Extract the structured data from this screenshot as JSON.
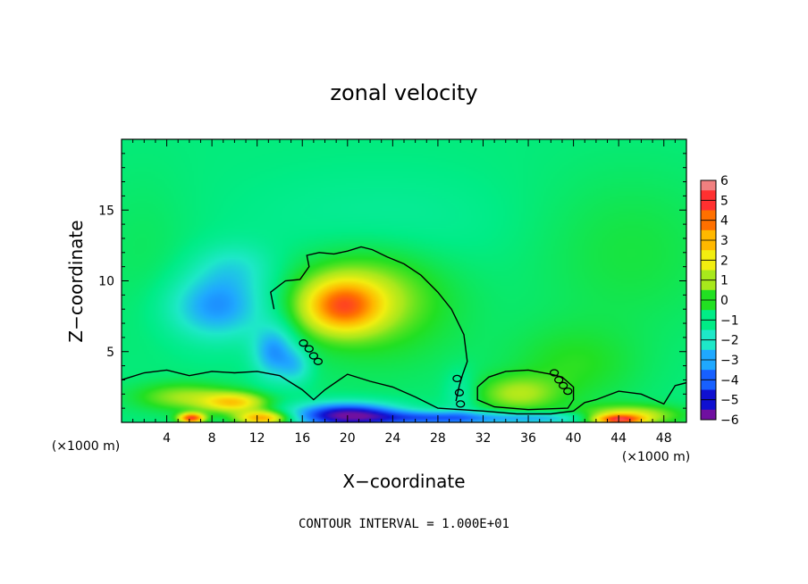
{
  "chart_data": {
    "type": "heatmap",
    "title": "zonal velocity",
    "xlabel": "X−coordinate",
    "ylabel": "Z−coordinate",
    "xlim": [
      0,
      50
    ],
    "ylim": [
      0,
      20
    ],
    "x_ticks": [
      "4",
      "8",
      "12",
      "16",
      "20",
      "24",
      "28",
      "32",
      "36",
      "40",
      "44",
      "48"
    ],
    "x_tick_values": [
      4,
      8,
      12,
      16,
      20,
      24,
      28,
      32,
      36,
      40,
      44,
      48
    ],
    "y_ticks": [
      "5",
      "10",
      "15"
    ],
    "y_tick_values": [
      5,
      10,
      15
    ],
    "x_unit_left": "(×1000 m)",
    "x_unit_right": "(×1000 m)",
    "colorbar": {
      "labels": [
        "6",
        "5",
        "4",
        "3",
        "2",
        "1",
        "0",
        "−1",
        "−2",
        "−3",
        "−4",
        "−5",
        "−6"
      ],
      "levels": [
        6,
        5,
        4,
        3,
        2,
        1,
        0,
        -1,
        -2,
        -3,
        -4,
        -5,
        -6
      ],
      "colors": [
        "#f08080",
        "#ff3030",
        "#ff7000",
        "#ffb800",
        "#f2ee10",
        "#a8e81c",
        "#22e022",
        "#00ec86",
        "#1ee8c8",
        "#1fa8ff",
        "#1760ff",
        "#1010d0",
        "#7010a0"
      ]
    },
    "background_level": -0.9,
    "anomalies": [
      {
        "x": 8.5,
        "z": 8.2,
        "sx": 3.0,
        "sz": 1.6,
        "v": -2.4
      },
      {
        "x": 10.0,
        "z": 11.0,
        "sx": 2.5,
        "sz": 1.2,
        "v": -1.0
      },
      {
        "x": 13.5,
        "z": 5.0,
        "sx": 1.3,
        "sz": 1.3,
        "v": -2.4
      },
      {
        "x": 15.5,
        "z": 4.0,
        "sx": 1.0,
        "sz": 0.9,
        "v": -1.4
      },
      {
        "x": 19.5,
        "z": 8.2,
        "sx": 2.4,
        "sz": 1.3,
        "v": 3.8
      },
      {
        "x": 21.5,
        "z": 9.2,
        "sx": 4.5,
        "sz": 2.2,
        "v": 1.6
      },
      {
        "x": 23.0,
        "z": 7.0,
        "sx": 5.5,
        "sz": 3.0,
        "v": 0.6
      },
      {
        "x": 35.0,
        "z": 2.0,
        "sx": 2.5,
        "sz": 0.9,
        "v": 1.8
      },
      {
        "x": 5.5,
        "z": 1.8,
        "sx": 3.0,
        "sz": 0.7,
        "v": 1.8
      },
      {
        "x": 10.0,
        "z": 1.4,
        "sx": 2.0,
        "sz": 0.5,
        "v": 3.2
      },
      {
        "x": 12.5,
        "z": 0.3,
        "sx": 1.6,
        "sz": 0.35,
        "v": 4.2
      },
      {
        "x": 6.2,
        "z": 0.3,
        "sx": 0.8,
        "sz": 0.25,
        "v": 5.5
      },
      {
        "x": 20.0,
        "z": 0.5,
        "sx": 3.2,
        "sz": 0.6,
        "v": -5.0
      },
      {
        "x": 28.0,
        "z": 0.3,
        "sx": 4.0,
        "sz": 0.35,
        "v": -3.0
      },
      {
        "x": 37.0,
        "z": 0.3,
        "sx": 3.5,
        "sz": 0.3,
        "v": -2.0
      },
      {
        "x": 45.0,
        "z": 0.5,
        "sx": 3.0,
        "sz": 0.5,
        "v": 2.5
      },
      {
        "x": 44.0,
        "z": 0.2,
        "sx": 1.5,
        "sz": 0.25,
        "v": 4.5
      },
      {
        "x": 40.0,
        "z": 4.0,
        "sx": 4.0,
        "sz": 2.0,
        "v": 0.9
      },
      {
        "x": 45.0,
        "z": 12.0,
        "sx": 6.0,
        "sz": 4.0,
        "v": 0.6
      },
      {
        "x": 2.0,
        "z": 12.0,
        "sx": 3.0,
        "sz": 4.0,
        "v": 0.3
      },
      {
        "x": 30.0,
        "z": 2.0,
        "sx": 1.0,
        "sz": 1.2,
        "v": -0.8
      },
      {
        "x": 23.0,
        "z": 14.0,
        "sx": 8.0,
        "sz": 2.5,
        "v": -0.4
      }
    ],
    "zero_contours": [
      [
        [
          0,
          3.0
        ],
        [
          2,
          3.5
        ],
        [
          4,
          3.7
        ],
        [
          6,
          3.3
        ],
        [
          8,
          3.6
        ],
        [
          10,
          3.5
        ],
        [
          12,
          3.6
        ],
        [
          14,
          3.3
        ],
        [
          16,
          2.3
        ],
        [
          17,
          1.6
        ],
        [
          18,
          2.3
        ],
        [
          20,
          3.4
        ],
        [
          22,
          2.9
        ],
        [
          24,
          2.5
        ],
        [
          26,
          1.8
        ],
        [
          28,
          1.0
        ],
        [
          30,
          0.9
        ],
        [
          32,
          0.8
        ],
        [
          35,
          0.6
        ],
        [
          38,
          0.6
        ],
        [
          40,
          0.8
        ],
        [
          41,
          1.4
        ],
        [
          42,
          1.6
        ],
        [
          44,
          2.2
        ],
        [
          46,
          2.0
        ],
        [
          48,
          1.3
        ],
        [
          49,
          2.6
        ],
        [
          50,
          2.8
        ]
      ],
      [
        [
          13.5,
          8.0
        ],
        [
          13.2,
          9.2
        ],
        [
          14.5,
          10.0
        ],
        [
          15.8,
          10.1
        ],
        [
          16.6,
          11.0
        ],
        [
          16.4,
          11.8
        ],
        [
          17.5,
          12.0
        ],
        [
          18.8,
          11.9
        ],
        [
          20.0,
          12.1
        ],
        [
          21.2,
          12.4
        ],
        [
          22.2,
          12.2
        ],
        [
          23.5,
          11.7
        ],
        [
          25.0,
          11.2
        ],
        [
          26.5,
          10.4
        ],
        [
          28.0,
          9.2
        ],
        [
          29.2,
          8.0
        ],
        [
          30.3,
          6.2
        ],
        [
          30.6,
          4.3
        ],
        [
          30.2,
          3.4
        ],
        [
          29.9,
          2.6
        ],
        [
          29.6,
          1.5
        ]
      ],
      [
        [
          31.5,
          2.5
        ],
        [
          32.5,
          3.2
        ],
        [
          34.0,
          3.6
        ],
        [
          36.0,
          3.7
        ],
        [
          38.0,
          3.4
        ],
        [
          39.0,
          3.2
        ],
        [
          40.0,
          2.5
        ],
        [
          40.0,
          1.6
        ],
        [
          39.5,
          1.0
        ],
        [
          36.0,
          0.9
        ],
        [
          33.0,
          1.1
        ],
        [
          31.5,
          1.6
        ],
        [
          31.5,
          2.5
        ]
      ]
    ],
    "small_loops": [
      [
        16.1,
        5.6
      ],
      [
        16.6,
        5.2
      ],
      [
        17.0,
        4.7
      ],
      [
        17.4,
        4.3
      ],
      [
        29.7,
        3.1
      ],
      [
        29.9,
        2.1
      ],
      [
        30.0,
        1.3
      ],
      [
        38.3,
        3.5
      ],
      [
        38.7,
        3.0
      ],
      [
        39.1,
        2.6
      ],
      [
        39.5,
        2.2
      ]
    ]
  },
  "footer": {
    "contour_interval": "CONTOUR INTERVAL = 1.000E+01"
  }
}
